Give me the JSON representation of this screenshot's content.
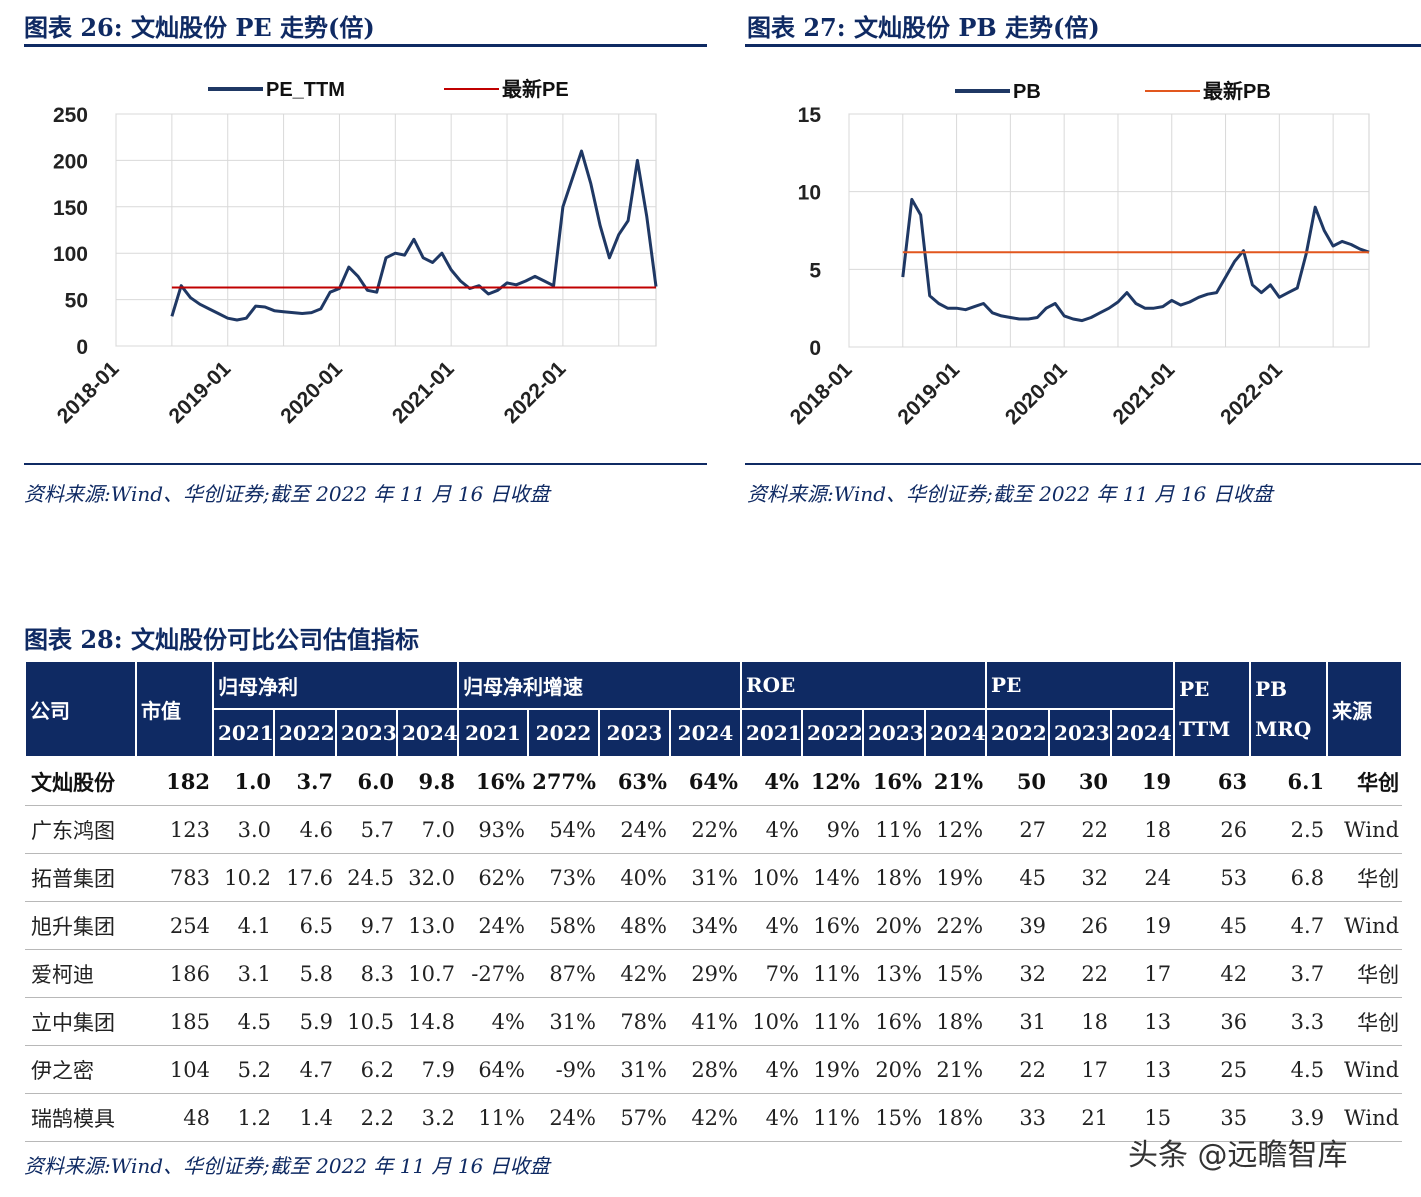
{
  "figures": {
    "pe": {
      "title": "图表 26: 文灿股份 PE 走势(倍)",
      "source": "资料来源:Wind、华创证券;截至 2022 年 11 月 16 日收盘"
    },
    "pb": {
      "title": "图表 27: 文灿股份 PB 走势(倍)",
      "source": "资料来源:Wind、华创证券;截至 2022 年 11 月 16 日收盘"
    },
    "table": {
      "title": "图表 28: 文灿股份可比公司估值指标",
      "source": "资料来源:Wind、华创证券;截至 2022 年 11 月 16 日收盘"
    }
  },
  "chart_data": [
    {
      "type": "line",
      "title": "",
      "x_ticks": [
        "2018-01",
        "2019-01",
        "2020-01",
        "2021-01",
        "2022-01"
      ],
      "ylim": [
        0,
        250
      ],
      "y_ticks": [
        "0",
        "50",
        "100",
        "150",
        "200",
        "250"
      ],
      "grid": true,
      "legend": "top",
      "colors": {
        "pe_ttm": "#1f3864",
        "latest": "#c00000"
      },
      "series": [
        {
          "name": "PE_TTM",
          "x": [
            "2018-07",
            "2018-08",
            "2018-09",
            "2018-10",
            "2018-11",
            "2018-12",
            "2019-01",
            "2019-02",
            "2019-03",
            "2019-04",
            "2019-05",
            "2019-06",
            "2019-07",
            "2019-08",
            "2019-09",
            "2019-10",
            "2019-11",
            "2019-12",
            "2020-01",
            "2020-02",
            "2020-03",
            "2020-04",
            "2020-05",
            "2020-06",
            "2020-07",
            "2020-08",
            "2020-09",
            "2020-10",
            "2020-11",
            "2020-12",
            "2021-01",
            "2021-02",
            "2021-03",
            "2021-04",
            "2021-05",
            "2021-06",
            "2021-07",
            "2021-08",
            "2021-09",
            "2021-10",
            "2021-11",
            "2021-12",
            "2022-01",
            "2022-02",
            "2022-03",
            "2022-04",
            "2022-05",
            "2022-06",
            "2022-07",
            "2022-08",
            "2022-09",
            "2022-10",
            "2022-11"
          ],
          "values": [
            32,
            65,
            52,
            45,
            40,
            35,
            30,
            28,
            30,
            43,
            42,
            38,
            37,
            36,
            35,
            36,
            40,
            58,
            62,
            85,
            75,
            60,
            58,
            95,
            100,
            98,
            115,
            95,
            90,
            100,
            82,
            70,
            62,
            65,
            56,
            60,
            68,
            66,
            70,
            75,
            70,
            65,
            150,
            180,
            210,
            175,
            130,
            95,
            120,
            135,
            200,
            140,
            64
          ]
        },
        {
          "name": "最新PE",
          "x": [
            "2018-07",
            "2022-11"
          ],
          "values": [
            63,
            63
          ]
        }
      ]
    },
    {
      "type": "line",
      "title": "",
      "x_ticks": [
        "2018-01",
        "2019-01",
        "2020-01",
        "2021-01",
        "2022-01"
      ],
      "ylim": [
        0,
        15
      ],
      "y_ticks": [
        "0",
        "5",
        "10",
        "15"
      ],
      "grid": true,
      "legend": "top",
      "colors": {
        "pb": "#1f3864",
        "latest": "#e2571e"
      },
      "series": [
        {
          "name": "PB",
          "x": [
            "2018-07",
            "2018-08",
            "2018-09",
            "2018-10",
            "2018-11",
            "2018-12",
            "2019-01",
            "2019-02",
            "2019-03",
            "2019-04",
            "2019-05",
            "2019-06",
            "2019-07",
            "2019-08",
            "2019-09",
            "2019-10",
            "2019-11",
            "2019-12",
            "2020-01",
            "2020-02",
            "2020-03",
            "2020-04",
            "2020-05",
            "2020-06",
            "2020-07",
            "2020-08",
            "2020-09",
            "2020-10",
            "2020-11",
            "2020-12",
            "2021-01",
            "2021-02",
            "2021-03",
            "2021-04",
            "2021-05",
            "2021-06",
            "2021-07",
            "2021-08",
            "2021-09",
            "2021-10",
            "2021-11",
            "2021-12",
            "2022-01",
            "2022-02",
            "2022-03",
            "2022-04",
            "2022-05",
            "2022-06",
            "2022-07",
            "2022-08",
            "2022-09",
            "2022-10",
            "2022-11"
          ],
          "values": [
            4.5,
            9.5,
            8.5,
            3.3,
            2.8,
            2.5,
            2.5,
            2.4,
            2.6,
            2.8,
            2.2,
            2.0,
            1.9,
            1.8,
            1.8,
            1.9,
            2.5,
            2.8,
            2.0,
            1.8,
            1.7,
            1.9,
            2.2,
            2.5,
            2.9,
            3.5,
            2.8,
            2.5,
            2.5,
            2.6,
            3.0,
            2.7,
            2.9,
            3.2,
            3.4,
            3.5,
            4.5,
            5.5,
            6.2,
            4.0,
            3.5,
            4.0,
            3.2,
            3.5,
            3.8,
            6.0,
            9.0,
            7.5,
            6.5,
            6.8,
            6.6,
            6.3,
            6.1
          ]
        },
        {
          "name": "最新PB",
          "x": [
            "2018-07",
            "2022-11"
          ],
          "values": [
            6.1,
            6.1
          ]
        }
      ]
    },
    {
      "type": "table",
      "header_groups": [
        {
          "label": "公司",
          "span": 1,
          "rowspan": 2
        },
        {
          "label": "市值",
          "span": 1,
          "rowspan": 2
        },
        {
          "label": "归母净利",
          "span": 4
        },
        {
          "label": "归母净利增速",
          "span": 4
        },
        {
          "label": "ROE",
          "span": 4
        },
        {
          "label": "PE",
          "span": 3
        },
        {
          "label": "PE TTM",
          "span": 1,
          "rowspan": 2
        },
        {
          "label": "PB MRQ",
          "span": 1,
          "rowspan": 2
        },
        {
          "label": "来源",
          "span": 1,
          "rowspan": 2
        }
      ],
      "sub_headers": [
        "2021",
        "2022",
        "2023",
        "2024",
        "2021",
        "2022",
        "2023",
        "2024",
        "2021",
        "2022",
        "2023",
        "2024",
        "2022",
        "2023",
        "2024"
      ],
      "rows": [
        [
          "文灿股份",
          "182",
          "1.0",
          "3.7",
          "6.0",
          "9.8",
          "16%",
          "277%",
          "63%",
          "64%",
          "4%",
          "12%",
          "16%",
          "21%",
          "50",
          "30",
          "19",
          "63",
          "6.1",
          "华创"
        ],
        [
          "广东鸿图",
          "123",
          "3.0",
          "4.6",
          "5.7",
          "7.0",
          "93%",
          "54%",
          "24%",
          "22%",
          "4%",
          "9%",
          "11%",
          "12%",
          "27",
          "22",
          "18",
          "26",
          "2.5",
          "Wind"
        ],
        [
          "拓普集团",
          "783",
          "10.2",
          "17.6",
          "24.5",
          "32.0",
          "62%",
          "73%",
          "40%",
          "31%",
          "10%",
          "14%",
          "18%",
          "19%",
          "45",
          "32",
          "24",
          "53",
          "6.8",
          "华创"
        ],
        [
          "旭升集团",
          "254",
          "4.1",
          "6.5",
          "9.7",
          "13.0",
          "24%",
          "58%",
          "48%",
          "34%",
          "4%",
          "16%",
          "20%",
          "22%",
          "39",
          "26",
          "19",
          "45",
          "4.7",
          "Wind"
        ],
        [
          "爱柯迪",
          "186",
          "3.1",
          "5.8",
          "8.3",
          "10.7",
          "-27%",
          "87%",
          "42%",
          "29%",
          "7%",
          "11%",
          "13%",
          "15%",
          "32",
          "22",
          "17",
          "42",
          "3.7",
          "华创"
        ],
        [
          "立中集团",
          "185",
          "4.5",
          "5.9",
          "10.5",
          "14.8",
          "4%",
          "31%",
          "78%",
          "41%",
          "10%",
          "11%",
          "16%",
          "18%",
          "31",
          "18",
          "13",
          "36",
          "3.3",
          "华创"
        ],
        [
          "伊之密",
          "104",
          "5.2",
          "4.7",
          "6.2",
          "7.9",
          "64%",
          "-9%",
          "31%",
          "28%",
          "4%",
          "19%",
          "20%",
          "21%",
          "22",
          "17",
          "13",
          "25",
          "4.5",
          "Wind"
        ],
        [
          "瑞鹄模具",
          "48",
          "1.2",
          "1.4",
          "2.2",
          "3.2",
          "11%",
          "24%",
          "57%",
          "42%",
          "4%",
          "11%",
          "15%",
          "18%",
          "33",
          "21",
          "15",
          "35",
          "3.9",
          "Wind"
        ]
      ]
    }
  ],
  "watermark": "头条 @远瞻智库"
}
